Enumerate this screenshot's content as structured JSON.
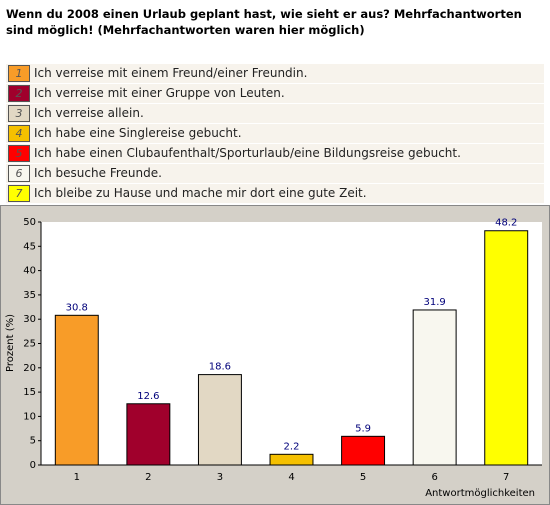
{
  "chart_data": {
    "type": "bar",
    "title": "Wenn du 2008 einen Urlaub geplant hast, wie sieht er aus? Mehrfachantworten sind möglich! (Mehrfachantworten waren hier möglich)",
    "legend_labels": [
      "Ich verreise mit einem Freund/einer Freundin.",
      "Ich verreise mit einer Gruppe von Leuten.",
      "Ich verreise allein.",
      "Ich habe eine Singlereise gebucht.",
      "Ich habe einen Clubaufenthalt/Sporturlaub/eine Bildungsreise gebucht.",
      "Ich besuche Freunde.",
      "Ich bleibe zu Hause und mache mir dort eine gute Zeit."
    ],
    "categories": [
      "1",
      "2",
      "3",
      "4",
      "5",
      "6",
      "7"
    ],
    "values": [
      30.8,
      12.6,
      18.6,
      2.2,
      5.9,
      31.9,
      48.2
    ],
    "colors": [
      "#f89c28",
      "#a0002c",
      "#e2d8c4",
      "#f5c000",
      "#ff0000",
      "#f8f7ef",
      "#ffff00"
    ],
    "x_label": "Antwortmöglichkeiten",
    "y_label": "Prozent (%)",
    "ylim": [
      0,
      50
    ],
    "yticks": [
      0,
      5,
      10,
      15,
      20,
      25,
      30,
      35,
      40,
      45,
      50
    ]
  }
}
